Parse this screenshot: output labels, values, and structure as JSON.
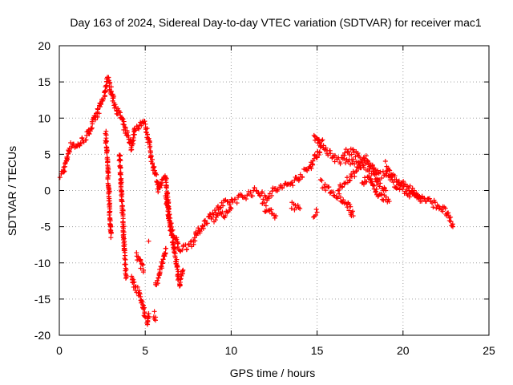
{
  "chart_data": {
    "type": "scatter",
    "title": "Day 163 of 2024, Sidereal Day-to-day VTEC variation (SDTVAR) for receiver mac1",
    "xlabel": "GPS time / hours",
    "ylabel": "SDTVAR / TECUs",
    "xlim": [
      0,
      25
    ],
    "ylim": [
      -20,
      20
    ],
    "xticks": [
      "0",
      "5",
      "10",
      "15",
      "20",
      "25"
    ],
    "yticks": [
      "20",
      "15",
      "10",
      "5",
      "0",
      "-5",
      "-10",
      "-15",
      "-20"
    ],
    "grid": true,
    "marker": "plus",
    "color": "#ff0000",
    "series": [
      {
        "name": "mac1",
        "segments": [
          [
            [
              0.0,
              2.0
            ],
            [
              0.2,
              2.5
            ],
            [
              0.4,
              4.0
            ],
            [
              0.6,
              6.0
            ],
            [
              0.8,
              6.5
            ],
            [
              1.0,
              6.0
            ],
            [
              1.3,
              6.8
            ],
            [
              1.6,
              7.5
            ],
            [
              1.8,
              8.5
            ],
            [
              2.0,
              9.5
            ],
            [
              2.2,
              10.5
            ],
            [
              2.4,
              12.0
            ],
            [
              2.6,
              13.0
            ],
            [
              2.8,
              15.5
            ],
            [
              3.0,
              14.0
            ],
            [
              3.2,
              12.0
            ],
            [
              3.4,
              11.0
            ],
            [
              3.6,
              10.0
            ],
            [
              3.8,
              8.5
            ],
            [
              4.0,
              7.5
            ],
            [
              4.2,
              6.0
            ],
            [
              4.4,
              8.5
            ],
            [
              4.6,
              9.0
            ],
            [
              4.8,
              9.5
            ],
            [
              5.0,
              9.0
            ],
            [
              5.2,
              7.0
            ],
            [
              5.4,
              4.0
            ],
            [
              5.6,
              2.0
            ],
            [
              5.8,
              0.0
            ],
            [
              6.0,
              1.5
            ],
            [
              6.2,
              2.0
            ],
            [
              6.4,
              -4.0
            ],
            [
              6.6,
              -6.0
            ],
            [
              6.8,
              -7.0
            ],
            [
              7.0,
              -8.0
            ],
            [
              7.2,
              -8.0
            ],
            [
              7.5,
              -7.5
            ],
            [
              7.8,
              -7.0
            ],
            [
              8.0,
              -6.0
            ],
            [
              8.3,
              -5.0
            ],
            [
              8.6,
              -4.0
            ],
            [
              9.0,
              -3.0
            ],
            [
              9.5,
              -2.0
            ],
            [
              10.0,
              -1.5
            ],
            [
              10.5,
              -1.0
            ],
            [
              11.0,
              -0.5
            ],
            [
              11.5,
              0.0
            ],
            [
              12.0,
              -1.0
            ],
            [
              12.5,
              0.0
            ],
            [
              13.0,
              0.5
            ],
            [
              13.5,
              1.0
            ],
            [
              14.0,
              2.0
            ],
            [
              14.5,
              3.0
            ],
            [
              15.0,
              5.0
            ],
            [
              15.3,
              6.5
            ],
            [
              15.6,
              5.5
            ],
            [
              16.0,
              4.5
            ],
            [
              16.5,
              4.0
            ],
            [
              17.0,
              4.0
            ],
            [
              17.5,
              3.5
            ],
            [
              18.0,
              3.0
            ],
            [
              18.5,
              2.5
            ],
            [
              19.0,
              2.0
            ],
            [
              19.5,
              1.0
            ],
            [
              20.0,
              0.0
            ],
            [
              20.5,
              -0.5
            ],
            [
              21.0,
              -1.0
            ],
            [
              21.5,
              -1.5
            ],
            [
              22.0,
              -2.0
            ],
            [
              22.5,
              -3.0
            ],
            [
              22.9,
              -5.0
            ]
          ],
          [
            [
              2.7,
              8.0
            ],
            [
              2.8,
              4.0
            ],
            [
              2.9,
              -1.0
            ],
            [
              3.0,
              -6.5
            ]
          ],
          [
            [
              3.5,
              5.0
            ],
            [
              3.6,
              1.0
            ],
            [
              3.7,
              -4.0
            ],
            [
              3.8,
              -9.0
            ],
            [
              3.9,
              -12.0
            ]
          ],
          [
            [
              4.2,
              -12.0
            ],
            [
              4.4,
              -13.5
            ],
            [
              4.6,
              -14.0
            ],
            [
              4.8,
              -15.5
            ],
            [
              5.0,
              -17.5
            ]
          ],
          [
            [
              4.5,
              -9.0
            ],
            [
              4.7,
              -10.0
            ],
            [
              4.9,
              -11.0
            ]
          ],
          [
            [
              5.1,
              -18.5
            ],
            [
              5.2,
              -17.0
            ]
          ],
          [
            [
              5.5,
              -17.0
            ],
            [
              5.6,
              -17.5
            ]
          ],
          [
            [
              5.6,
              -13.0
            ],
            [
              5.8,
              -12.0
            ],
            [
              6.0,
              -10.0
            ],
            [
              6.2,
              -8.0
            ]
          ],
          [
            [
              6.2,
              -1.0
            ],
            [
              6.4,
              -4.0
            ],
            [
              6.6,
              -7.0
            ],
            [
              6.8,
              -10.0
            ],
            [
              7.0,
              -13.0
            ],
            [
              7.2,
              -11.0
            ]
          ],
          [
            [
              5.2,
              -7.0
            ]
          ],
          [
            [
              13.5,
              -2.0
            ],
            [
              14.0,
              -2.5
            ]
          ],
          [
            [
              14.8,
              -3.5
            ],
            [
              15.0,
              -3.0
            ]
          ],
          [
            [
              15.2,
              1.0
            ],
            [
              15.8,
              0.0
            ],
            [
              16.4,
              -1.0
            ],
            [
              16.8,
              -2.0
            ],
            [
              17.1,
              -3.5
            ]
          ],
          [
            [
              16.2,
              0.5
            ],
            [
              16.8,
              1.5
            ],
            [
              17.4,
              3.0
            ],
            [
              17.8,
              4.5
            ],
            [
              18.2,
              3.0
            ],
            [
              18.6,
              1.0
            ],
            [
              19.0,
              0.0
            ]
          ],
          [
            [
              17.6,
              1.0
            ],
            [
              18.0,
              2.0
            ],
            [
              18.4,
              0.0
            ],
            [
              18.8,
              -1.0
            ],
            [
              19.2,
              -1.5
            ]
          ],
          [
            [
              19.0,
              3.5
            ],
            [
              19.4,
              2.0
            ],
            [
              19.8,
              1.0
            ],
            [
              20.2,
              0.5
            ],
            [
              20.6,
              0.0
            ],
            [
              21.0,
              -1.5
            ]
          ],
          [
            [
              11.8,
              -2.0
            ],
            [
              12.2,
              -3.0
            ],
            [
              12.6,
              -3.5
            ]
          ],
          [
            [
              9.0,
              -4.0
            ],
            [
              9.5,
              -3.5
            ],
            [
              10.0,
              -2.5
            ]
          ],
          [
            [
              14.8,
              7.5
            ],
            [
              15.0,
              7.0
            ],
            [
              15.2,
              6.0
            ]
          ],
          [
            [
              16.5,
              5.0
            ],
            [
              17.0,
              5.5
            ],
            [
              17.5,
              4.5
            ]
          ]
        ]
      }
    ]
  }
}
